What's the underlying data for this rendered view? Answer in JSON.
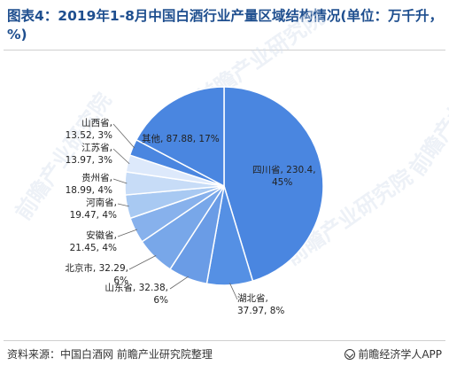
{
  "title": "图表4：2019年1-8月中国白酒行业产量区域结构情况(单位：万千升，%)",
  "source": "资料来源：中国白酒网 前瞻产业研究院整理",
  "brand": "前瞻经济学人APP",
  "watermark": "前瞻产业研究院",
  "colors": {
    "accent": "#1f4f8f",
    "slices": [
      "#4a86e0",
      "#5590e4",
      "#6a9ce6",
      "#78a7e9",
      "#87b1ec",
      "#a8c9f2",
      "#c7dcf7",
      "#dde9fb",
      "#4a86e0",
      "#4a86e0"
    ]
  },
  "chart_data": {
    "type": "pie",
    "title": "图表4：2019年1-8月中国白酒行业产量区域结构情况(单位：万千升，%)",
    "slices": [
      {
        "name": "四川省",
        "value": 230.4,
        "percent": 45,
        "label_lines": [
          "四川省, 230.4,",
          "45%"
        ]
      },
      {
        "name": "湖北省",
        "value": 37.97,
        "percent": 8,
        "label_lines": [
          "湖北省,",
          "37.97, 8%"
        ]
      },
      {
        "name": "山东省",
        "value": 32.38,
        "percent": 6,
        "label_lines": [
          "山东省, 32.38,",
          "6%"
        ]
      },
      {
        "name": "北京市",
        "value": 32.29,
        "percent": 6,
        "label_lines": [
          "北京市, 32.29,",
          "6%"
        ]
      },
      {
        "name": "安徽省",
        "value": 21.45,
        "percent": 4,
        "label_lines": [
          "安徽省,",
          "21.45, 4%"
        ]
      },
      {
        "name": "河南省",
        "value": 19.47,
        "percent": 4,
        "label_lines": [
          "河南省,",
          "19.47, 4%"
        ]
      },
      {
        "name": "贵州省",
        "value": 18.99,
        "percent": 4,
        "label_lines": [
          "贵州省,",
          "18.99, 4%"
        ]
      },
      {
        "name": "江苏省",
        "value": 13.97,
        "percent": 3,
        "label_lines": [
          "江苏省,",
          "13.97, 3%"
        ]
      },
      {
        "name": "山西省",
        "value": 13.52,
        "percent": 3,
        "label_lines": [
          "山西省,",
          "13.52, 3%"
        ]
      },
      {
        "name": "其他",
        "value": 87.88,
        "percent": 17,
        "label_lines": [
          "其他, 87.88, 17%"
        ]
      }
    ]
  }
}
